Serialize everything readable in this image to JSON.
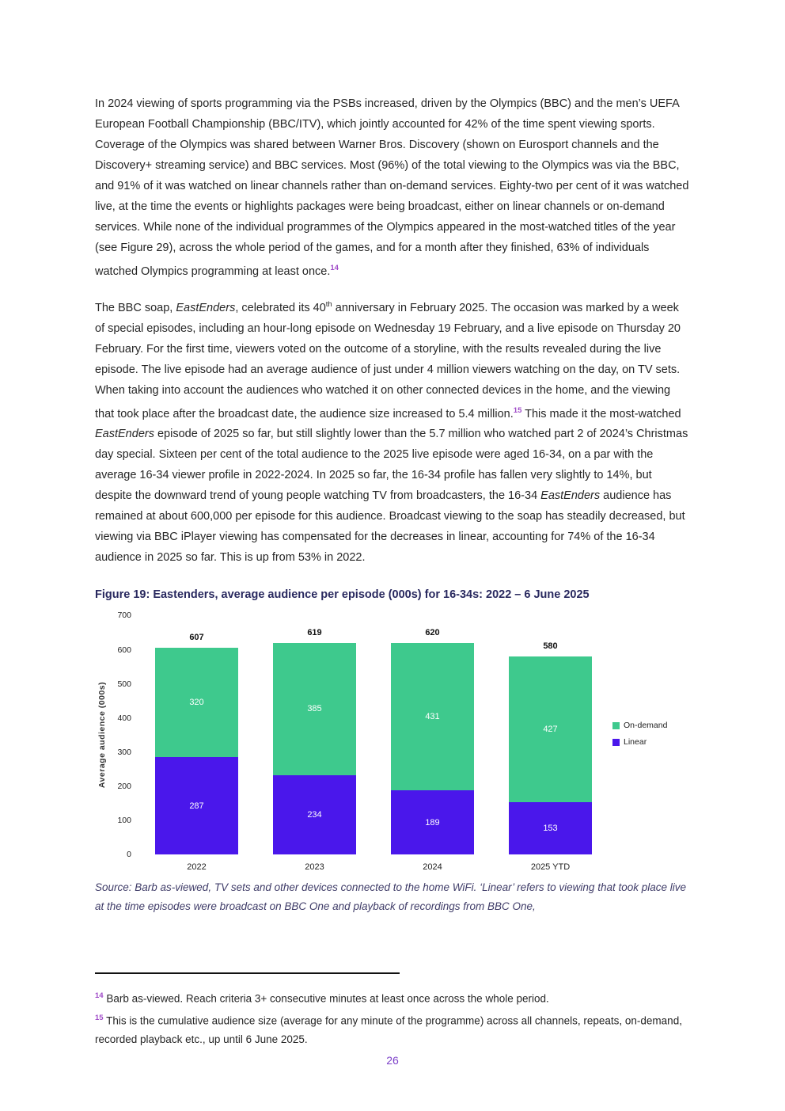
{
  "document": {
    "paragraphs": {
      "sports": [
        {
          "t": "In 2024 viewing of sports programming via the PSBs increased, driven by the Olympics (BBC) and the men’s UEFA European Football Championship (BBC/ITV), which jointly accounted for 42% of the time spent viewing sports. Coverage of the Olympics was shared between Warner Bros. Discovery (shown on Eurosport channels and the Discovery+ streaming service) and BBC services. Most (96%) of the total viewing to the Olympics was via the BBC, and 91% of it was watched on linear channels rather than on-demand services. Eighty-two per cent of it was watched live, at the time the events or highlights packages were being broadcast, either on linear channels or on-demand services. While none of the individual programmes of the Olympics appeared in the most-watched titles of the year (see Figure 29), across the whole period of the games, and for a month after they finished, 63% of individuals watched Olympics programming at least once.",
          "s": "normal"
        },
        {
          "t": "14",
          "s": "suplink"
        }
      ],
      "eastenders": [
        {
          "t": "The BBC soap, ",
          "s": "normal"
        },
        {
          "t": "EastEnders",
          "s": "italic"
        },
        {
          "t": ", celebrated its 40",
          "s": "normal"
        },
        {
          "t": "th",
          "s": "sup"
        },
        {
          "t": " anniversary in February 2025. The occasion was marked by a week of special episodes, including an hour-long episode on Wednesday 19 February, and a live episode on Thursday 20 February. For the first time, viewers voted on the outcome of a storyline, with the results revealed during the live episode. The live episode had an average audience of just under 4 million viewers watching on the day, on TV sets. When taking into account the audiences who watched it on other connected devices in the home, and the viewing that took place after the broadcast date, the audience size increased to 5.4 million.",
          "s": "normal"
        },
        {
          "t": "15",
          "s": "suplink"
        },
        {
          "t": " This made it the most-watched ",
          "s": "normal"
        },
        {
          "t": "EastEnders",
          "s": "italic"
        },
        {
          "t": " episode of 2025 so far, but still slightly lower than the 5.7 million who watched part 2 of 2024’s Christmas day special. Sixteen per cent of the total audience to the 2025 live episode were aged 16-34, on a par with the average 16-34 viewer profile in 2022-2024. In 2025 so far, the 16-34 profile has fallen very slightly to 14%, but despite the downward trend of young people watching TV from broadcasters, the 16-34 ",
          "s": "normal"
        },
        {
          "t": "EastEnders",
          "s": "italic"
        },
        {
          "t": " audience has remained at about 600,000 per episode for this audience. Broadcast viewing to the soap has steadily decreased, but viewing via BBC iPlayer viewing has compensated for the decreases in linear, accounting for 74% of the 16-34 audience in 2025 so far. This is up from 53% in 2022.",
          "s": "normal"
        }
      ]
    },
    "figure_title": "Figure 19: Eastenders, average audience per episode (000s) for 16-34s: 2022 – 6 June 2025",
    "source_note": "Source: Barb as-viewed, TV sets and other devices connected to the home WiFi. ‘Linear’ refers to viewing that took place live at the time episodes were broadcast on BBC One and playback of recordings from BBC One,",
    "footnotes": [
      {
        "marker": "14",
        "text": " Barb as-viewed. Reach criteria 3+ consecutive minutes at least once across the whole period."
      },
      {
        "marker": "15",
        "text": " This is the cumulative audience size (average for any minute of the programme) across all channels, repeats, on-demand, recorded playback etc., up until 6 June 2025."
      }
    ],
    "page_number": "26"
  },
  "colors": {
    "body_text": "#262626",
    "figure_title": "#29295f",
    "source_text": "#3f3c68",
    "footnote_marker": "#a04cc8",
    "page_number": "#7d41c9",
    "on_demand_green": "#3ec98d",
    "linear_purple": "#4a17eb",
    "total_label": "#111111",
    "bar_value_label": "#ffffff"
  },
  "chart_data": {
    "type": "bar",
    "stacked": true,
    "title": "Figure 19: Eastenders, average audience per episode (000s) for 16-34s: 2022 – 6 June 2025",
    "categories": [
      "2022",
      "2023",
      "2024",
      "2025 YTD"
    ],
    "series": [
      {
        "name": "Linear",
        "color": "#4a17eb",
        "values": [
          287,
          234,
          189,
          153
        ]
      },
      {
        "name": "On-demand",
        "color": "#3ec98d",
        "values": [
          320,
          385,
          431,
          427
        ]
      }
    ],
    "totals": [
      607,
      619,
      620,
      580
    ],
    "xlabel": "",
    "ylabel": "Average audience (000s)",
    "ylim": [
      0,
      700
    ],
    "yticks": [
      0,
      100,
      200,
      300,
      400,
      500,
      600,
      700
    ],
    "grid": false,
    "legend_position": "right",
    "legend_order": [
      "On-demand",
      "Linear"
    ]
  }
}
